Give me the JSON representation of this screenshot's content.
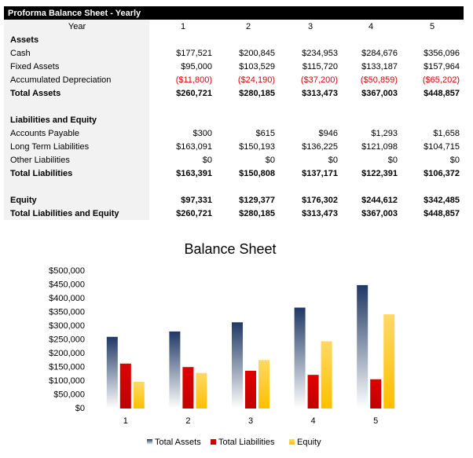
{
  "table": {
    "title": "Proforma Balance Sheet - Yearly",
    "header": [
      "Year",
      "1",
      "2",
      "3",
      "4",
      "5"
    ],
    "rows": [
      {
        "label": "Assets",
        "bold": true
      },
      {
        "label": "Cash",
        "values": [
          "$177,521",
          "$200,845",
          "$234,953",
          "$284,676",
          "$356,096"
        ]
      },
      {
        "label": "Fixed Assets",
        "values": [
          "$95,000",
          "$103,529",
          "$115,720",
          "$133,187",
          "$157,964"
        ]
      },
      {
        "label": "Accumulated Depreciation",
        "values": [
          "($11,800)",
          "($24,190)",
          "($37,200)",
          "($50,859)",
          "($65,202)"
        ]
      },
      {
        "label": "Total Assets",
        "bold": true,
        "values": [
          "$260,721",
          "$280,185",
          "$313,473",
          "$367,003",
          "$448,857"
        ]
      },
      {
        "label": "Liabilities and Equity",
        "bold": true
      },
      {
        "label": "Accounts Payable",
        "values": [
          "$300",
          "$615",
          "$946",
          "$1,293",
          "$1,658"
        ]
      },
      {
        "label": "Long Term Liabilities",
        "values": [
          "$163,091",
          "$150,193",
          "$136,225",
          "$121,098",
          "$104,715"
        ]
      },
      {
        "label": "Other Liabilities",
        "values": [
          "$0",
          "$0",
          "$0",
          "$0",
          "$0"
        ]
      },
      {
        "label": "Total Liabilities",
        "bold": true,
        "values": [
          "$163,391",
          "$150,808",
          "$137,171",
          "$122,391",
          "$106,372"
        ]
      },
      {
        "label": "Equity",
        "bold": true,
        "values": [
          "$97,331",
          "$129,377",
          "$176,302",
          "$244,612",
          "$342,485"
        ]
      },
      {
        "label": "Total Liabilities and Equity",
        "bold": true,
        "values": [
          "$260,721",
          "$280,185",
          "$313,473",
          "$367,003",
          "$448,857"
        ]
      }
    ]
  },
  "chart_data": {
    "type": "bar",
    "title": "Balance Sheet",
    "categories": [
      "1",
      "2",
      "3",
      "4",
      "5"
    ],
    "series": [
      {
        "name": "Total Assets",
        "color": "#1f3864",
        "values": [
          260721,
          280185,
          313473,
          367003,
          448857
        ]
      },
      {
        "name": "Total Liabilities",
        "color": "#e00000",
        "values": [
          163391,
          150808,
          137171,
          122391,
          106372
        ]
      },
      {
        "name": "Equity",
        "color": "#ffc000",
        "values": [
          97331,
          129377,
          176302,
          244612,
          342485
        ]
      }
    ],
    "ylim": [
      0,
      500000
    ],
    "yticks": [
      {
        "value": 0,
        "label": "$0"
      },
      {
        "value": 50000,
        "label": "$50,000"
      },
      {
        "value": 100000,
        "label": "$100,000"
      },
      {
        "value": 150000,
        "label": "$150,000"
      },
      {
        "value": 200000,
        "label": "$200,000"
      },
      {
        "value": 250000,
        "label": "$250,000"
      },
      {
        "value": 300000,
        "label": "$300,000"
      },
      {
        "value": 350000,
        "label": "$350,000"
      },
      {
        "value": 400000,
        "label": "$400,000"
      },
      {
        "value": 450000,
        "label": "$450,000"
      },
      {
        "value": 500000,
        "label": "$500,000"
      }
    ],
    "legend": "bottom"
  }
}
